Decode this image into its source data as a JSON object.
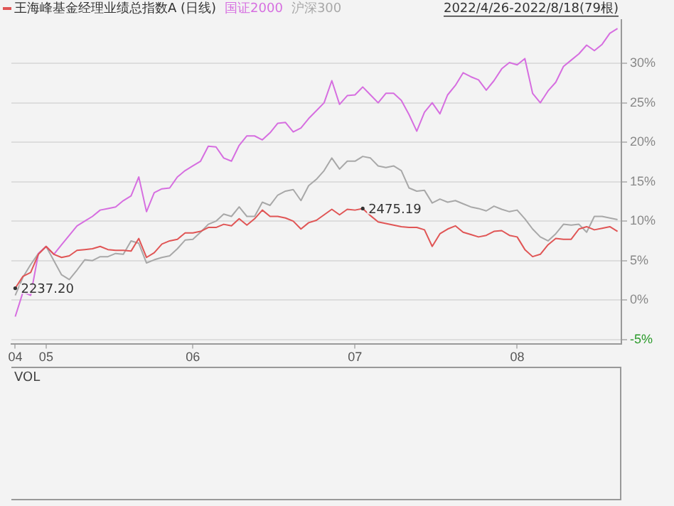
{
  "chart_data": {
    "type": "line",
    "subtitle": "2022/4/26-2022/8/18(79根)",
    "categories": [
      "04",
      null,
      null,
      null,
      "05",
      null,
      null,
      null,
      null,
      null,
      null,
      null,
      null,
      null,
      null,
      null,
      null,
      null,
      null,
      null,
      null,
      null,
      null,
      "06",
      null,
      null,
      null,
      null,
      null,
      null,
      null,
      null,
      null,
      null,
      null,
      null,
      null,
      null,
      null,
      null,
      null,
      null,
      null,
      null,
      "07",
      null,
      null,
      null,
      null,
      null,
      null,
      null,
      null,
      null,
      null,
      null,
      null,
      null,
      null,
      null,
      null,
      null,
      null,
      null,
      null,
      "08",
      null,
      null,
      null,
      null,
      null,
      null,
      null,
      null,
      null,
      null,
      null,
      null,
      null
    ],
    "ylim": [
      -5.6,
      35.5
    ],
    "yticks": [
      {
        "value": -5,
        "label": "-5%"
      },
      {
        "value": 0,
        "label": "0%"
      },
      {
        "value": 5,
        "label": "5%"
      },
      {
        "value": 10,
        "label": "10%"
      },
      {
        "value": 15,
        "label": "15%"
      },
      {
        "value": 20,
        "label": "20%"
      },
      {
        "value": 25,
        "label": "25%"
      },
      {
        "value": 30,
        "label": "30%"
      }
    ],
    "grid": "y",
    "legend": "top left",
    "marker": "none",
    "line_style": "solid",
    "series": [
      {
        "name": "王海峰基金经理业绩总指数A (日线)",
        "color": "#e05555",
        "values": [
          1.5,
          3.0,
          3.5,
          5.8,
          6.8,
          5.8,
          5.4,
          5.6,
          6.3,
          6.4,
          6.5,
          6.8,
          6.4,
          6.3,
          6.3,
          6.2,
          7.8,
          5.4,
          6.0,
          7.1,
          7.5,
          7.7,
          8.5,
          8.5,
          8.7,
          9.2,
          9.2,
          9.6,
          9.4,
          10.3,
          9.5,
          10.3,
          11.4,
          10.6,
          10.6,
          10.4,
          10.0,
          9.0,
          9.8,
          10.1,
          10.8,
          11.5,
          10.8,
          11.5,
          11.4,
          11.6,
          10.7,
          9.9,
          9.7,
          9.5,
          9.3,
          9.2,
          9.2,
          8.9,
          6.8,
          8.4,
          9.0,
          9.4,
          8.6,
          8.3,
          8.0,
          8.2,
          8.7,
          8.8,
          8.2,
          8.0,
          6.4,
          5.5,
          5.8,
          7.0,
          7.8,
          7.7,
          7.7,
          9.0,
          9.3,
          8.9,
          9.1,
          9.3,
          8.7
        ]
      },
      {
        "name": "国证2000",
        "color": "#d66ee0",
        "values": [
          -2.1,
          1.0,
          0.6,
          5.9,
          6.8,
          5.8,
          7.0,
          8.2,
          9.4,
          10.0,
          10.6,
          11.4,
          11.6,
          11.8,
          12.6,
          13.2,
          15.6,
          11.2,
          13.6,
          14.1,
          14.2,
          15.6,
          16.4,
          17.0,
          17.6,
          19.5,
          19.4,
          18.0,
          17.6,
          19.6,
          20.8,
          20.8,
          20.3,
          21.2,
          22.4,
          22.5,
          21.3,
          21.8,
          23.0,
          24.0,
          25.0,
          27.8,
          24.8,
          25.9,
          26.0,
          27.0,
          26.0,
          25.0,
          26.2,
          26.2,
          25.3,
          23.5,
          21.4,
          23.8,
          25.0,
          23.6,
          26.0,
          27.2,
          28.8,
          28.3,
          27.9,
          26.6,
          27.8,
          29.3,
          30.1,
          29.8,
          30.6,
          26.2,
          25.0,
          26.5,
          27.6,
          29.6,
          30.4,
          31.2,
          32.3,
          31.6,
          32.4,
          33.8,
          34.4
        ]
      },
      {
        "name": "沪深300",
        "color": "#a8a8a8",
        "values": [
          0.6,
          2.9,
          4.5,
          5.9,
          6.8,
          5.0,
          3.2,
          2.6,
          3.8,
          5.1,
          5.0,
          5.5,
          5.5,
          5.9,
          5.8,
          7.5,
          7.2,
          4.7,
          5.1,
          5.4,
          5.6,
          6.5,
          7.6,
          7.7,
          8.6,
          9.6,
          10.0,
          10.9,
          10.6,
          11.8,
          10.6,
          10.6,
          12.4,
          12.0,
          13.3,
          13.8,
          14.0,
          12.6,
          14.5,
          15.3,
          16.4,
          18.0,
          16.6,
          17.6,
          17.6,
          18.2,
          18.0,
          17.0,
          16.8,
          17.0,
          16.4,
          14.2,
          13.8,
          13.9,
          12.3,
          12.8,
          12.4,
          12.6,
          12.2,
          11.8,
          11.6,
          11.3,
          11.9,
          11.5,
          11.2,
          11.4,
          10.3,
          9.0,
          8.0,
          7.5,
          8.4,
          9.6,
          9.5,
          9.6,
          8.6,
          10.6,
          10.6,
          10.4,
          10.2
        ]
      }
    ],
    "annotations": [
      {
        "text": "2237.20",
        "x": "04",
        "y": 1.5
      },
      "2475.19",
      "VOL"
    ]
  }
}
